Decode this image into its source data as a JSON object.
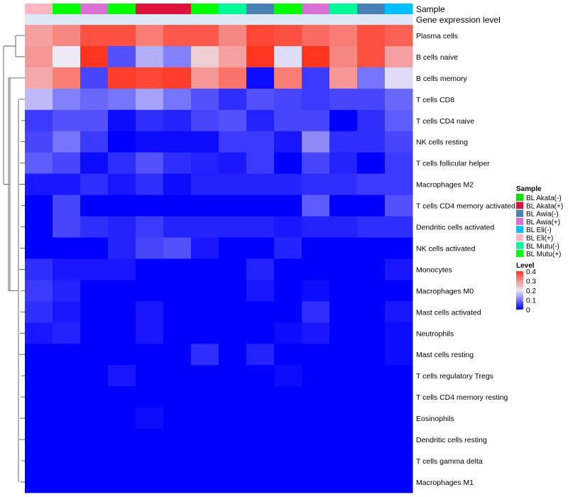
{
  "chart_data": {
    "type": "heatmap",
    "title": "",
    "annotation_labels": [
      "Sample",
      "Gene expression level"
    ],
    "sample_annotation": [
      "BL Eli(+)",
      "BL Mutu(+)",
      "BL Awia(+)",
      "BL Mutu(+)",
      "BL Akata(+)",
      "BL Akata(+)",
      "BL Mutu(+)",
      "BL Mutu(-)",
      "BL Awia(-)",
      "BL Mutu(+)",
      "BL Awia(+)",
      "BL Mutu(-)",
      "BL Awia(-)",
      "BL Eli(-)"
    ],
    "rows": [
      "Plasma cells",
      "B cells naive",
      "B cells memory",
      "T cells CD8",
      "T cells CD4 naive",
      "NK cells resting",
      "T cells follicular helper",
      "Macrophages M2",
      "T cells CD4 memory activated",
      "Dendritic cells activated",
      "NK cells activated",
      "Monocytes",
      "Macrophages M0",
      "Mast cells activated",
      "Neutrophils",
      "Mast cells resting",
      "T cells regulatory  Tregs",
      "T cells CD4 memory resting",
      "Eosinophils",
      "Dendritic cells resting",
      "T cells gamma delta",
      "Macrophages M1"
    ],
    "values": [
      [
        0.28,
        0.31,
        0.37,
        0.37,
        0.32,
        0.36,
        0.36,
        0.31,
        0.38,
        0.37,
        0.34,
        0.32,
        0.37,
        0.35
      ],
      [
        0.29,
        0.2,
        0.4,
        0.07,
        0.15,
        0.11,
        0.23,
        0.28,
        0.4,
        0.19,
        0.4,
        0.31,
        0.37,
        0.28
      ],
      [
        0.27,
        0.32,
        0.06,
        0.39,
        0.38,
        0.39,
        0.29,
        0.33,
        0.01,
        0.32,
        0.05,
        0.29,
        0.1,
        0.19
      ],
      [
        0.16,
        0.11,
        0.09,
        0.1,
        0.14,
        0.1,
        0.07,
        0.04,
        0.07,
        0.06,
        0.05,
        0.06,
        0.06,
        0.09
      ],
      [
        0.05,
        0.07,
        0.07,
        0.01,
        0.04,
        0.03,
        0.06,
        0.07,
        0.03,
        0.06,
        0.06,
        0.0,
        0.04,
        0.08
      ],
      [
        0.06,
        0.1,
        0.05,
        0.0,
        0.01,
        0.01,
        0.01,
        0.05,
        0.05,
        0.02,
        0.12,
        0.04,
        0.04,
        0.06
      ],
      [
        0.08,
        0.06,
        0.01,
        0.04,
        0.07,
        0.04,
        0.03,
        0.02,
        0.05,
        0.0,
        0.06,
        0.03,
        0.0,
        0.05
      ],
      [
        0.02,
        0.02,
        0.04,
        0.02,
        0.04,
        0.01,
        0.03,
        0.03,
        0.03,
        0.03,
        0.04,
        0.04,
        0.05,
        0.05
      ],
      [
        0.0,
        0.06,
        0.0,
        0.0,
        0.0,
        0.0,
        0.0,
        0.0,
        0.0,
        0.0,
        0.08,
        0.0,
        0.0,
        0.07
      ],
      [
        0.0,
        0.06,
        0.04,
        0.03,
        0.05,
        0.03,
        0.03,
        0.03,
        0.03,
        0.02,
        0.03,
        0.03,
        0.04,
        0.04
      ],
      [
        0.0,
        0.0,
        0.0,
        0.03,
        0.06,
        0.07,
        0.02,
        0.0,
        0.0,
        0.03,
        0.0,
        0.0,
        0.0,
        0.0
      ],
      [
        0.04,
        0.02,
        0.02,
        0.02,
        0.0,
        0.0,
        0.0,
        0.0,
        0.03,
        0.0,
        0.0,
        0.0,
        0.0,
        0.02
      ],
      [
        0.05,
        0.03,
        0.0,
        0.0,
        0.0,
        0.0,
        0.0,
        0.0,
        0.02,
        0.0,
        0.01,
        0.0,
        0.0,
        0.0
      ],
      [
        0.04,
        0.02,
        0.0,
        0.0,
        0.02,
        0.0,
        0.0,
        0.0,
        0.0,
        0.0,
        0.04,
        0.0,
        0.0,
        0.02
      ],
      [
        0.02,
        0.03,
        0.0,
        0.0,
        0.02,
        0.0,
        0.0,
        0.0,
        0.0,
        0.01,
        0.02,
        0.0,
        0.0,
        0.01
      ],
      [
        0.0,
        0.0,
        0.0,
        0.0,
        0.0,
        0.0,
        0.04,
        0.0,
        0.03,
        0.0,
        0.0,
        0.0,
        0.0,
        0.01
      ],
      [
        0.0,
        0.0,
        0.0,
        0.02,
        0.0,
        0.0,
        0.0,
        0.0,
        0.0,
        0.01,
        0.0,
        0.0,
        0.0,
        0.0
      ],
      [
        0.0,
        0.0,
        0.0,
        0.0,
        0.0,
        0.0,
        0.0,
        0.0,
        0.0,
        0.0,
        0.0,
        0.0,
        0.0,
        0.0
      ],
      [
        0.0,
        0.0,
        0.0,
        0.0,
        0.01,
        0.0,
        0.0,
        0.0,
        0.0,
        0.0,
        0.0,
        0.0,
        0.0,
        0.0
      ],
      [
        0.0,
        0.0,
        0.0,
        0.0,
        0.0,
        0.0,
        0.0,
        0.0,
        0.0,
        0.0,
        0.0,
        0.0,
        0.0,
        0.0
      ],
      [
        0.0,
        0.0,
        0.0,
        0.0,
        0.0,
        0.0,
        0.0,
        0.0,
        0.0,
        0.0,
        0.0,
        0.0,
        0.0,
        0.0
      ],
      [
        0.0,
        0.0,
        0.0,
        0.0,
        0.0,
        0.0,
        0.0,
        0.0,
        0.0,
        0.0,
        0.0,
        0.0,
        0.0,
        0.0
      ]
    ],
    "value_range": [
      0,
      0.4
    ],
    "color_scale": [
      "#0000ff",
      "#ece8f5",
      "#ff3520"
    ],
    "sample_legend": {
      "title": "Sample",
      "entries": [
        {
          "label": "BL Akata(-)",
          "color": "#00e100"
        },
        {
          "label": "BL Akata(+)",
          "color": "#dc143c"
        },
        {
          "label": "BL Awia(-)",
          "color": "#4682b4"
        },
        {
          "label": "BL Awia(+)",
          "color": "#da70d6"
        },
        {
          "label": "BL Eli(-)",
          "color": "#00bfff"
        },
        {
          "label": "BL Eli(+)",
          "color": "#ffb6c1"
        },
        {
          "label": "BL Mutu(-)",
          "color": "#00fa9a"
        },
        {
          "label": "BL Mutu(+)",
          "color": "#00ff00"
        }
      ]
    },
    "level_legend": {
      "title": "Level",
      "ticks": [
        "0.4",
        "0.3",
        "0.2",
        "0.1",
        "0"
      ],
      "tick_values": [
        0.4,
        0.3,
        0.2,
        0.1,
        0
      ]
    },
    "expression_annotation_color": "#dce8f5",
    "dendrogram": "rows"
  }
}
